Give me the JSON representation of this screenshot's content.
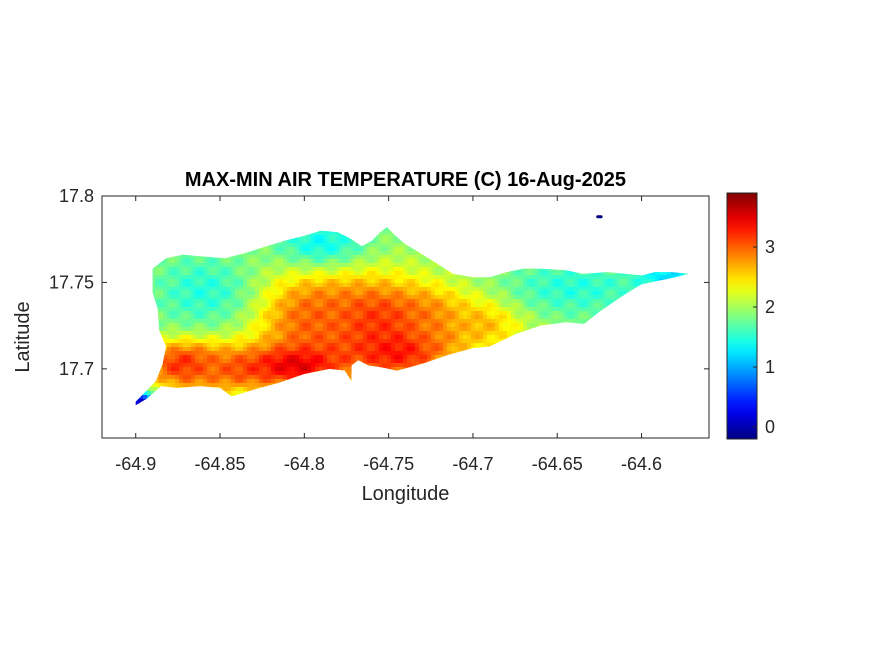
{
  "chart_data": {
    "type": "heatmap",
    "title": "MAX-MIN AIR TEMPERATURE (C) 16-Aug-2025",
    "xlabel": "Longitude",
    "ylabel": "Latitude",
    "xlim": [
      -64.92,
      -64.56
    ],
    "ylim": [
      17.66,
      17.8
    ],
    "x_ticks": [
      -64.9,
      -64.85,
      -64.8,
      -64.75,
      -64.7,
      -64.65,
      -64.6
    ],
    "x_tick_labels": [
      "-64.9",
      "-64.85",
      "-64.8",
      "-64.75",
      "-64.7",
      "-64.65",
      "-64.6"
    ],
    "y_ticks": [
      17.7,
      17.75,
      17.8
    ],
    "y_tick_labels": [
      "17.7",
      "17.75",
      "17.8"
    ],
    "colorbar": {
      "colormap": "jet",
      "range": [
        -0.2,
        3.9
      ],
      "ticks": [
        0,
        1,
        2,
        3
      ],
      "tick_labels": [
        "0",
        "1",
        "2",
        "3"
      ]
    },
    "grid": false,
    "island_outline": [
      [
        -64.9,
        17.679
      ],
      [
        -64.893,
        17.683
      ],
      [
        -64.885,
        17.69
      ],
      [
        -64.875,
        17.689
      ],
      [
        -64.862,
        17.69
      ],
      [
        -64.85,
        17.689
      ],
      [
        -64.843,
        17.684
      ],
      [
        -64.83,
        17.688
      ],
      [
        -64.815,
        17.692
      ],
      [
        -64.8,
        17.697
      ],
      [
        -64.785,
        17.7
      ],
      [
        -64.776,
        17.699
      ],
      [
        -64.772,
        17.693
      ],
      [
        -64.772,
        17.702
      ],
      [
        -64.768,
        17.705
      ],
      [
        -64.762,
        17.702
      ],
      [
        -64.755,
        17.701
      ],
      [
        -64.745,
        17.699
      ],
      [
        -64.73,
        17.703
      ],
      [
        -64.715,
        17.708
      ],
      [
        -64.7,
        17.712
      ],
      [
        -64.69,
        17.713
      ],
      [
        -64.675,
        17.72
      ],
      [
        -64.66,
        17.725
      ],
      [
        -64.645,
        17.727
      ],
      [
        -64.634,
        17.726
      ],
      [
        -64.625,
        17.733
      ],
      [
        -64.61,
        17.743
      ],
      [
        -64.6,
        17.749
      ],
      [
        -64.59,
        17.751
      ],
      [
        -64.58,
        17.753
      ],
      [
        -64.572,
        17.755
      ],
      [
        -64.582,
        17.756
      ],
      [
        -64.592,
        17.756
      ],
      [
        -64.6,
        17.754
      ],
      [
        -64.61,
        17.755
      ],
      [
        -64.62,
        17.756
      ],
      [
        -64.635,
        17.755
      ],
      [
        -64.645,
        17.757
      ],
      [
        -64.66,
        17.758
      ],
      [
        -64.67,
        17.758
      ],
      [
        -64.68,
        17.756
      ],
      [
        -64.69,
        17.753
      ],
      [
        -64.7,
        17.753
      ],
      [
        -64.712,
        17.755
      ],
      [
        -64.723,
        17.762
      ],
      [
        -64.733,
        17.768
      ],
      [
        -64.74,
        17.772
      ],
      [
        -64.746,
        17.777
      ],
      [
        -64.751,
        17.782
      ],
      [
        -64.755,
        17.779
      ],
      [
        -64.76,
        17.774
      ],
      [
        -64.766,
        17.771
      ],
      [
        -64.772,
        17.775
      ],
      [
        -64.78,
        17.779
      ],
      [
        -64.79,
        17.78
      ],
      [
        -64.8,
        17.777
      ],
      [
        -64.812,
        17.774
      ],
      [
        -64.822,
        17.771
      ],
      [
        -64.835,
        17.767
      ],
      [
        -64.847,
        17.764
      ],
      [
        -64.86,
        17.765
      ],
      [
        -64.872,
        17.766
      ],
      [
        -64.882,
        17.764
      ],
      [
        -64.89,
        17.758
      ],
      [
        -64.89,
        17.744
      ],
      [
        -64.887,
        17.735
      ],
      [
        -64.886,
        17.722
      ],
      [
        -64.882,
        17.713
      ],
      [
        -64.884,
        17.703
      ],
      [
        -64.888,
        17.693
      ],
      [
        -64.893,
        17.688
      ],
      [
        -64.9,
        17.681
      ]
    ],
    "small_cay": [
      [
        -64.624,
        17.788
      ],
      [
        -64.626,
        17.788
      ]
    ],
    "field_base_value": 1.9,
    "hotspots": [
      {
        "x": -64.745,
        "y": 17.715,
        "value": 3.9,
        "sigma_x": 0.02,
        "sigma_y": 0.012
      },
      {
        "x": -64.76,
        "y": 17.725,
        "value": 3.3,
        "sigma_x": 0.03,
        "sigma_y": 0.02
      },
      {
        "x": -64.795,
        "y": 17.728,
        "value": 3.0,
        "sigma_x": 0.025,
        "sigma_y": 0.02
      },
      {
        "x": -64.87,
        "y": 17.703,
        "value": 3.4,
        "sigma_x": 0.018,
        "sigma_y": 0.01
      },
      {
        "x": -64.84,
        "y": 17.7,
        "value": 3.0,
        "sigma_x": 0.025,
        "sigma_y": 0.01
      },
      {
        "x": -64.805,
        "y": 17.702,
        "value": 3.5,
        "sigma_x": 0.02,
        "sigma_y": 0.008
      },
      {
        "x": -64.725,
        "y": 17.726,
        "value": 3.0,
        "sigma_x": 0.015,
        "sigma_y": 0.012
      },
      {
        "x": -64.695,
        "y": 17.727,
        "value": 2.7,
        "sigma_x": 0.02,
        "sigma_y": 0.012
      }
    ],
    "coolspots": [
      {
        "x": -64.86,
        "y": 17.745,
        "value": 1.5,
        "sigma_x": 0.02,
        "sigma_y": 0.015
      },
      {
        "x": -64.79,
        "y": 17.773,
        "value": 1.4,
        "sigma_x": 0.02,
        "sigma_y": 0.01
      },
      {
        "x": -64.64,
        "y": 17.747,
        "value": 1.5,
        "sigma_x": 0.03,
        "sigma_y": 0.012
      },
      {
        "x": -64.585,
        "y": 17.753,
        "value": 1.2,
        "sigma_x": 0.012,
        "sigma_y": 0.008
      },
      {
        "x": -64.898,
        "y": 17.68,
        "value": 0.0,
        "sigma_x": 0.006,
        "sigma_y": 0.005
      },
      {
        "x": -64.625,
        "y": 17.788,
        "value": -0.2,
        "sigma_x": 0.003,
        "sigma_y": 0.003
      }
    ]
  }
}
